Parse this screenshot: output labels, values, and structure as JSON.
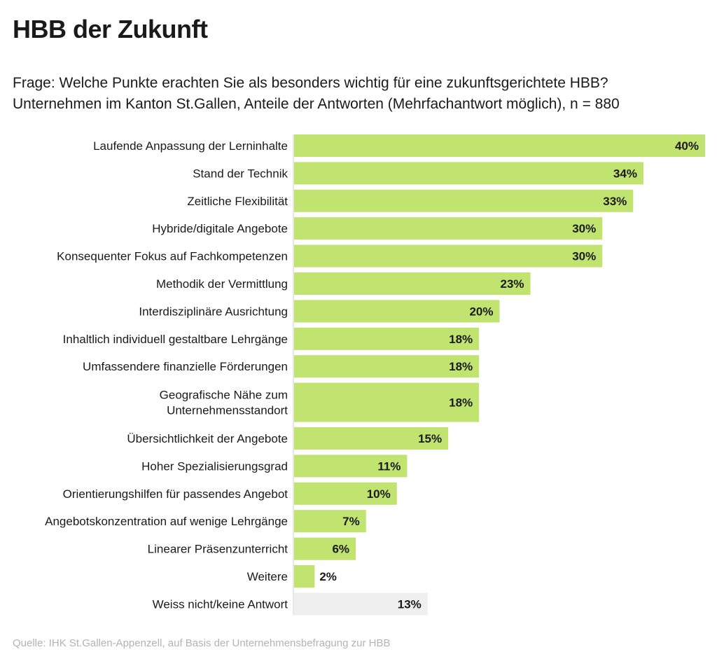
{
  "page": {
    "title": "HBB der Zukunft",
    "subtitle_line1": "Frage: Welche Punkte erachten Sie als besonders wichtig für eine zukunftsgerichtete HBB?",
    "subtitle_line2": "Unternehmen im Kanton St.Gallen, Anteile der Antworten (Mehrfachantwort möglich), n = 880",
    "source": "Quelle: IHK St.Gallen-Appenzell, auf Basis der Unternehmensbefragung zur HBB"
  },
  "colors": {
    "bar": "#c1e36f",
    "bar_muted": "#efefef",
    "axis": "#cfcfcf",
    "text": "#1a1a1a"
  },
  "chart_data": {
    "type": "bar",
    "orientation": "horizontal",
    "categories": [
      [
        "Laufende Anpassung der Lerninhalte"
      ],
      [
        "Stand der Technik"
      ],
      [
        "Zeitliche Flexibilität"
      ],
      [
        "Hybride/digitale Angebote"
      ],
      [
        "Konsequenter Fokus auf Fachkompetenzen"
      ],
      [
        "Methodik der Vermittlung"
      ],
      [
        "Interdisziplinäre Ausrichtung"
      ],
      [
        "Inhaltlich individuell gestaltbare Lehrgänge"
      ],
      [
        "Umfassendere finanzielle Förderungen"
      ],
      [
        "Geografische Nähe zum",
        "Unternehmensstandort"
      ],
      [
        "Übersichtlichkeit der Angebote"
      ],
      [
        "Hoher Spezialisierungsgrad"
      ],
      [
        "Orientierungshilfen für passendes Angebot"
      ],
      [
        "Angebotskonzentration auf wenige Lehrgänge"
      ],
      [
        "Linearer Präsenzunterricht"
      ],
      [
        "Weitere"
      ],
      [
        "Weiss nicht/keine Antwort"
      ]
    ],
    "values": [
      40,
      34,
      33,
      30,
      30,
      23,
      20,
      18,
      18,
      18,
      15,
      11,
      10,
      7,
      6,
      2,
      13
    ],
    "value_labels": [
      "40%",
      "34%",
      "33%",
      "30%",
      "30%",
      "23%",
      "20%",
      "18%",
      "18%",
      "18%",
      "15%",
      "11%",
      "10%",
      "7%",
      "6%",
      "2%",
      "13%"
    ],
    "muted": [
      false,
      false,
      false,
      false,
      false,
      false,
      false,
      false,
      false,
      false,
      false,
      false,
      false,
      false,
      false,
      false,
      true
    ],
    "xlim": [
      0,
      40
    ],
    "unit": "%",
    "grid": false,
    "legend": "none"
  }
}
